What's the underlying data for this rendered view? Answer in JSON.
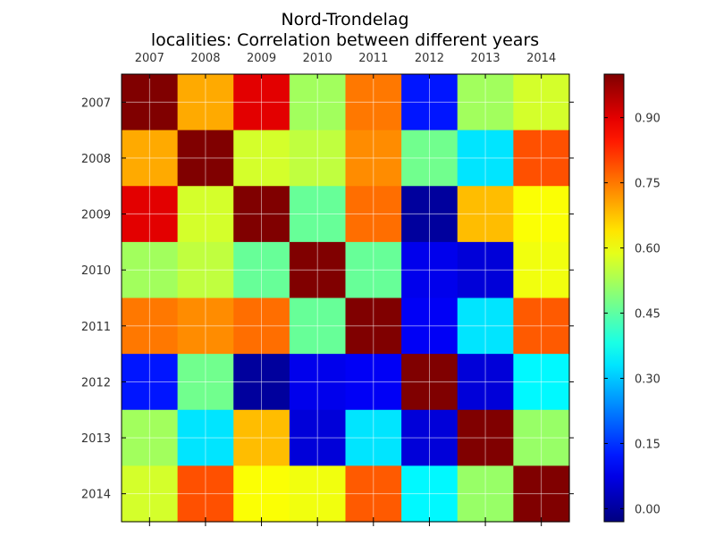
{
  "chart_data": {
    "type": "heatmap",
    "title": "Nord-Trondelag",
    "subtitle": "localities: Correlation between different years",
    "x_categories": [
      "2007",
      "2008",
      "2009",
      "2010",
      "2011",
      "2012",
      "2013",
      "2014"
    ],
    "y_categories": [
      "2007",
      "2008",
      "2009",
      "2010",
      "2011",
      "2012",
      "2013",
      "2014"
    ],
    "x_ticks_position": "top",
    "values": [
      [
        1.0,
        0.7,
        0.9,
        0.52,
        0.75,
        0.12,
        0.52,
        0.57
      ],
      [
        0.7,
        1.0,
        0.57,
        0.55,
        0.73,
        0.47,
        0.33,
        0.79
      ],
      [
        0.9,
        0.57,
        1.0,
        0.46,
        0.76,
        0.0,
        0.68,
        0.61
      ],
      [
        0.52,
        0.55,
        0.46,
        1.0,
        0.46,
        0.08,
        0.06,
        0.6
      ],
      [
        0.75,
        0.73,
        0.76,
        0.46,
        1.0,
        0.09,
        0.33,
        0.78
      ],
      [
        0.12,
        0.47,
        0.0,
        0.08,
        0.09,
        1.0,
        0.06,
        0.35
      ],
      [
        0.52,
        0.33,
        0.68,
        0.06,
        0.33,
        0.06,
        1.0,
        0.51
      ],
      [
        0.57,
        0.79,
        0.61,
        0.6,
        0.78,
        0.35,
        0.51,
        1.0
      ]
    ],
    "colormap": "jet",
    "colorbar": {
      "vmin": -0.03,
      "vmax": 1.0,
      "ticks": [
        0.0,
        0.15,
        0.3,
        0.45,
        0.6,
        0.75,
        0.9
      ],
      "tick_labels": [
        "0.00",
        "0.15",
        "0.30",
        "0.45",
        "0.60",
        "0.75",
        "0.90"
      ]
    },
    "grid": true,
    "legend": "colorbar-right"
  }
}
